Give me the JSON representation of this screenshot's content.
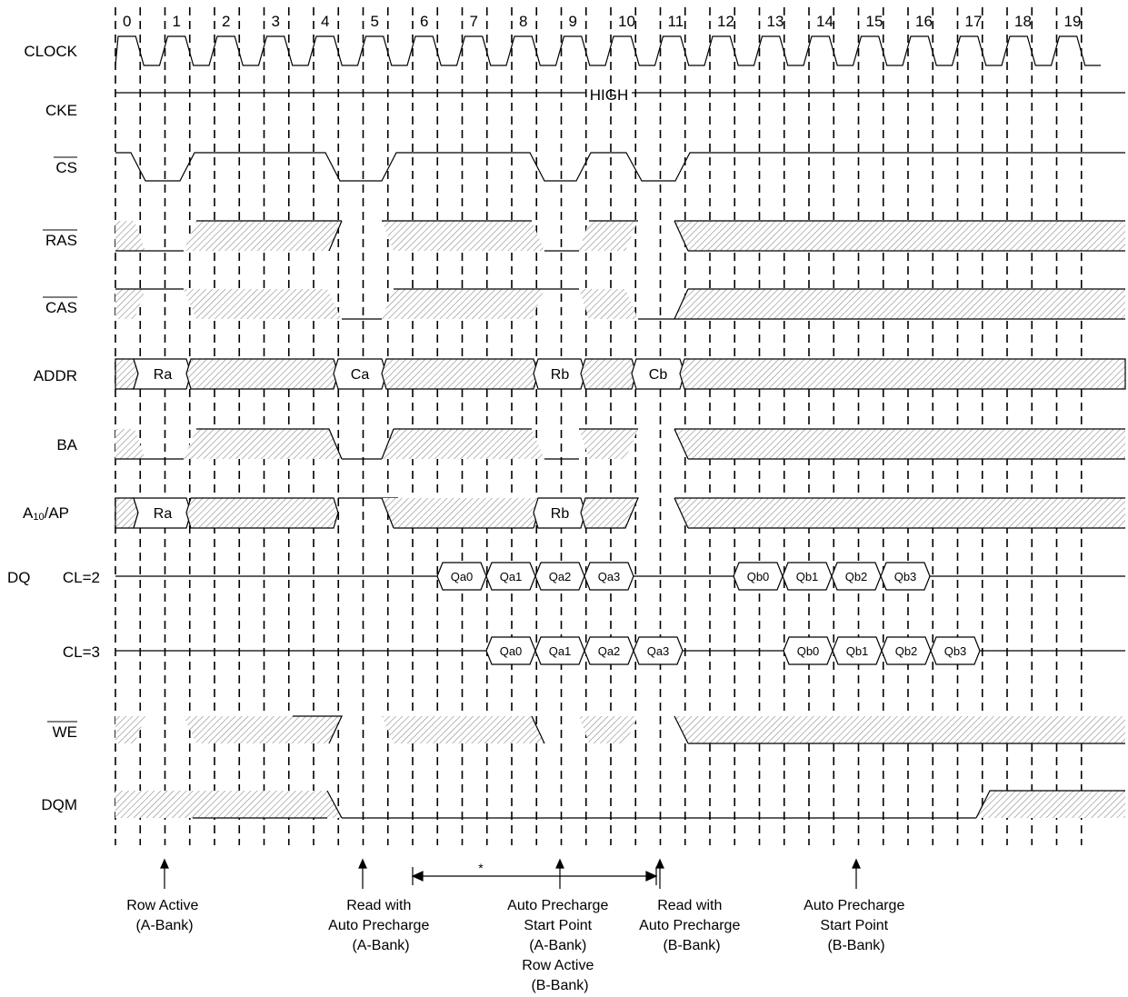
{
  "clock_numbers": [
    "0",
    "1",
    "2",
    "3",
    "4",
    "5",
    "6",
    "7",
    "8",
    "9",
    "10",
    "11",
    "12",
    "13",
    "14",
    "15",
    "16",
    "17",
    "18",
    "19"
  ],
  "signals": {
    "clock": "CLOCK",
    "cke": "CKE",
    "cke_level": "HIGH",
    "cs": "CS",
    "ras": "RAS",
    "cas": "CAS",
    "addr": "ADDR",
    "ba": "BA",
    "a10_main": "A",
    "a10_sub": "10",
    "a10_tail": "/AP",
    "dq": "DQ",
    "cl2": "CL=2",
    "cl3": "CL=3",
    "we": "WE",
    "dqm": "DQM"
  },
  "addr_values": [
    "Ra",
    "Ca",
    "Rb",
    "Cb"
  ],
  "a10_values": [
    "Ra",
    "Rb"
  ],
  "dq_cl2": [
    "Qa0",
    "Qa1",
    "Qa2",
    "Qa3",
    "Qb0",
    "Qb1",
    "Qb2",
    "Qb3"
  ],
  "dq_cl3": [
    "Qa0",
    "Qa1",
    "Qa2",
    "Qa3",
    "Qb0",
    "Qb1",
    "Qb2",
    "Qb3"
  ],
  "span_mark": "*",
  "annotations": [
    {
      "lines": [
        "Row Active",
        "(A-Bank)"
      ]
    },
    {
      "lines": [
        "Read with",
        "Auto Precharge",
        "(A-Bank)"
      ]
    },
    {
      "lines": [
        "Auto Precharge",
        "Start Point",
        "(A-Bank)",
        "Row Active",
        "(B-Bank)"
      ]
    },
    {
      "lines": [
        "Read with",
        "Auto Precharge",
        "(B-Bank)"
      ]
    },
    {
      "lines": [
        "Auto Precharge",
        "Start Point",
        "(B-Bank)"
      ]
    }
  ]
}
